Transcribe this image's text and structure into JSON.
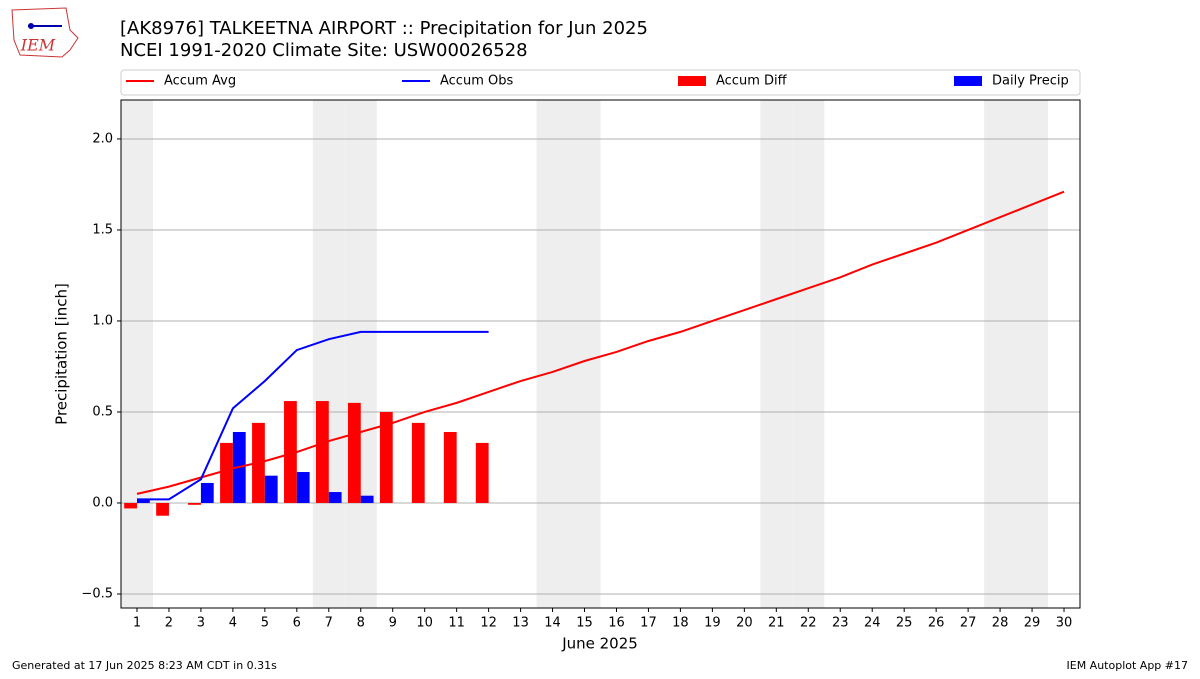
{
  "chart_data": {
    "type": "combo",
    "logo_text": "IEM",
    "title": "[AK8976] TALKEETNA AIRPORT :: Precipitation for Jun 2025",
    "subtitle": "NCEI 1991-2020 Climate Site: USW00026528",
    "x_label": "June 2025",
    "y_label": "Precipitation [inch]",
    "footer_left": "Generated at 17 Jun 2025 8:23 AM CDT in 0.31s",
    "footer_right": "IEM Autoplot App #17",
    "x": [
      1,
      2,
      3,
      4,
      5,
      6,
      7,
      8,
      9,
      10,
      11,
      12,
      13,
      14,
      15,
      16,
      17,
      18,
      19,
      20,
      21,
      22,
      23,
      24,
      25,
      26,
      27,
      28,
      29,
      30
    ],
    "xlim": [
      0.5,
      30.5
    ],
    "xticks": [
      1,
      2,
      3,
      4,
      5,
      6,
      7,
      8,
      9,
      10,
      11,
      12,
      13,
      14,
      15,
      16,
      17,
      18,
      19,
      20,
      21,
      22,
      23,
      24,
      25,
      26,
      27,
      28,
      29,
      30
    ],
    "ylim": [
      -0.577,
      2.214
    ],
    "yticks": [
      {
        "value": -0.5,
        "label": "−0.5"
      },
      {
        "value": 0,
        "label": "0.0"
      },
      {
        "value": 0.5,
        "label": "0.5"
      },
      {
        "value": 1,
        "label": "1.0"
      },
      {
        "value": 1.5,
        "label": "1.5"
      },
      {
        "value": 2,
        "label": "2.0"
      }
    ],
    "grid": true,
    "shaded_days": [
      1,
      7,
      8,
      14,
      15,
      21,
      22,
      28,
      29
    ],
    "series": [
      {
        "name": "Accum Avg",
        "kind": "line",
        "color": "#ff0000",
        "values": [
          0.05,
          0.09,
          0.14,
          0.19,
          0.23,
          0.28,
          0.34,
          0.39,
          0.44,
          0.5,
          0.55,
          0.61,
          0.67,
          0.72,
          0.78,
          0.83,
          0.89,
          0.94,
          1.0,
          1.06,
          1.12,
          1.18,
          1.24,
          1.31,
          1.37,
          1.43,
          1.5,
          1.57,
          1.64,
          1.71
        ]
      },
      {
        "name": "Accum Obs",
        "kind": "line",
        "color": "#0000ff",
        "values": [
          0.02,
          0.02,
          0.13,
          0.52,
          0.67,
          0.84,
          0.9,
          0.94,
          0.94,
          0.94,
          0.94,
          0.94,
          null,
          null,
          null,
          null,
          null,
          null,
          null,
          null,
          null,
          null,
          null,
          null,
          null,
          null,
          null,
          null,
          null,
          null
        ]
      },
      {
        "name": "Accum Diff",
        "kind": "bar",
        "offset": -0.2,
        "color": "#ff0000",
        "values": [
          -0.03,
          -0.07,
          -0.01,
          0.33,
          0.44,
          0.56,
          0.56,
          0.55,
          0.5,
          0.44,
          0.39,
          0.33,
          null,
          null,
          null,
          null,
          null,
          null,
          null,
          null,
          null,
          null,
          null,
          null,
          null,
          null,
          null,
          null,
          null,
          null
        ]
      },
      {
        "name": "Daily Precip",
        "kind": "bar",
        "offset": 0.2,
        "color": "#0000ff",
        "values": [
          0.02,
          0,
          0.11,
          0.39,
          0.15,
          0.17,
          0.06,
          0.04,
          0,
          0,
          0,
          0,
          null,
          null,
          null,
          null,
          null,
          null,
          null,
          null,
          null,
          null,
          null,
          null,
          null,
          null,
          null,
          null,
          null,
          null
        ]
      }
    ]
  }
}
